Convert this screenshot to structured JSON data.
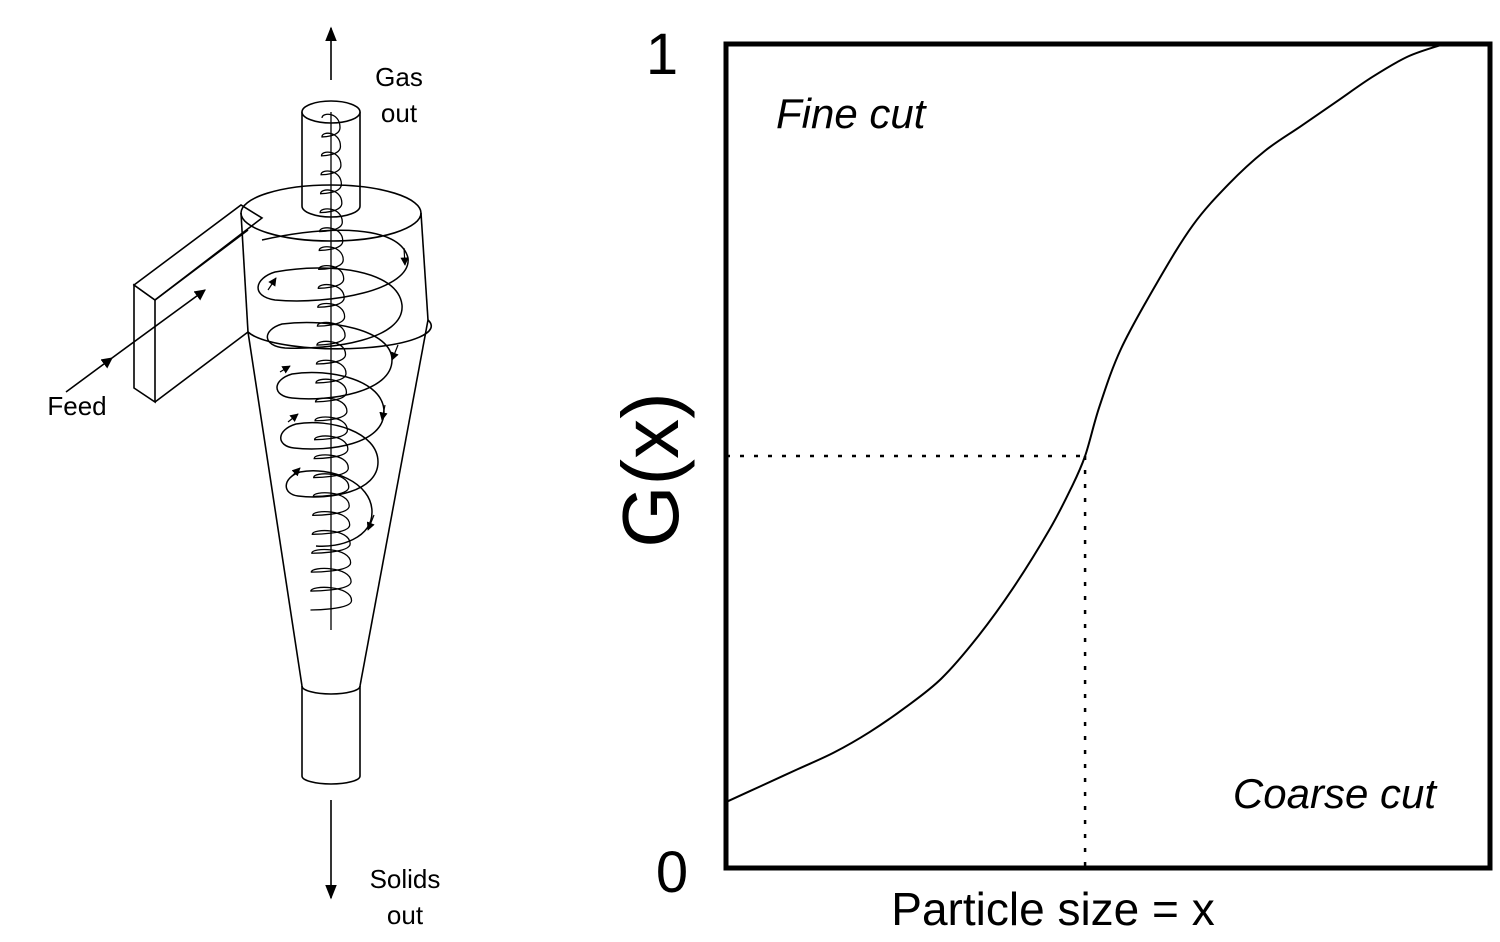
{
  "cyclone": {
    "gas_out_line1": "Gas",
    "gas_out_line2": "out",
    "feed": "Feed",
    "solids_out_line1": "Solids",
    "solids_out_line2": "out"
  },
  "chart_data": {
    "type": "line",
    "title": "",
    "xlabel": "Particle size = x",
    "ylabel": "G(x)",
    "ylim": [
      0,
      1
    ],
    "y_tick_labels": [
      "0",
      "1"
    ],
    "annotations": [
      "Fine cut",
      "Coarse cut"
    ],
    "grid": false,
    "legend": "none",
    "cut_point": {
      "x": 0.5,
      "y": 0.5
    },
    "series": [
      {
        "x": [
          0.0,
          0.05,
          0.1,
          0.15,
          0.2,
          0.25,
          0.3,
          0.35,
          0.4,
          0.45,
          0.48,
          0.5,
          0.52,
          0.55,
          0.6,
          0.65,
          0.7,
          0.75,
          0.8,
          0.85,
          0.9,
          0.95,
          1.0
        ],
        "values": [
          0.08,
          0.1,
          0.12,
          0.14,
          0.165,
          0.195,
          0.23,
          0.28,
          0.34,
          0.41,
          0.46,
          0.5,
          0.56,
          0.63,
          0.71,
          0.78,
          0.83,
          0.87,
          0.9,
          0.93,
          0.96,
          0.985,
          1.0
        ]
      }
    ]
  }
}
